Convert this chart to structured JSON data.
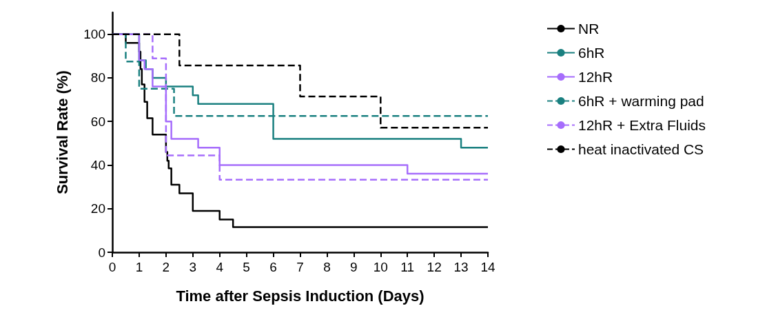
{
  "chart_data": {
    "type": "step",
    "xlabel": "Time after Sepsis Induction (Days)",
    "ylabel": "Survival Rate (%)",
    "xlim": [
      0,
      14
    ],
    "xticks": [
      0,
      1,
      2,
      3,
      4,
      5,
      6,
      7,
      8,
      9,
      10,
      11,
      12,
      13,
      14
    ],
    "ylim": [
      0,
      110
    ],
    "yticks": [
      0,
      20,
      40,
      60,
      80,
      100
    ],
    "grid": false,
    "legend": "right",
    "marker": "none",
    "series": [
      {
        "name": "NR",
        "color": "#000000",
        "line_style": "solid",
        "x": [
          0,
          0.5,
          1.0,
          1.05,
          1.1,
          1.2,
          1.3,
          1.5,
          2.0,
          2.05,
          2.1,
          2.2,
          2.5,
          3.0,
          4.0,
          4.5,
          14
        ],
        "values": [
          100,
          96,
          92,
          84,
          77,
          69,
          61.5,
          54,
          46,
          42,
          38.5,
          31,
          27,
          19,
          15,
          11.5,
          11.5
        ]
      },
      {
        "name": "6hR",
        "color": "#1a8080",
        "line_style": "solid",
        "x": [
          0,
          1.0,
          1.25,
          1.5,
          2.0,
          3.0,
          3.2,
          6.0,
          13.0,
          14
        ],
        "values": [
          100,
          88,
          84,
          80,
          76,
          72,
          68,
          52,
          48,
          48
        ]
      },
      {
        "name": "12hR",
        "color": "#a66dfc",
        "line_style": "solid",
        "x": [
          0,
          1.0,
          1.2,
          1.5,
          2.0,
          2.2,
          3.2,
          4.0,
          11.0,
          14
        ],
        "values": [
          100,
          88,
          84,
          76,
          60,
          52,
          48,
          40,
          36,
          36
        ]
      },
      {
        "name": "6hR + warming pad",
        "color": "#1a8080",
        "line_style": "dashed",
        "x": [
          0,
          0.5,
          1.0,
          2.3,
          14
        ],
        "values": [
          100,
          87.5,
          75,
          62.5,
          62.5
        ]
      },
      {
        "name": "12hR + Extra Fluids",
        "color": "#a66dfc",
        "line_style": "dashed",
        "x": [
          0,
          1.5,
          2.0,
          4.0,
          14
        ],
        "values": [
          100,
          88.9,
          44.4,
          33.3,
          33.3
        ]
      },
      {
        "name": "heat inactivated CS",
        "color": "#000000",
        "line_style": "dashed",
        "x": [
          0,
          2.5,
          7.0,
          10.0,
          14
        ],
        "values": [
          100,
          85.7,
          71.4,
          57.1,
          57.1
        ]
      }
    ]
  }
}
